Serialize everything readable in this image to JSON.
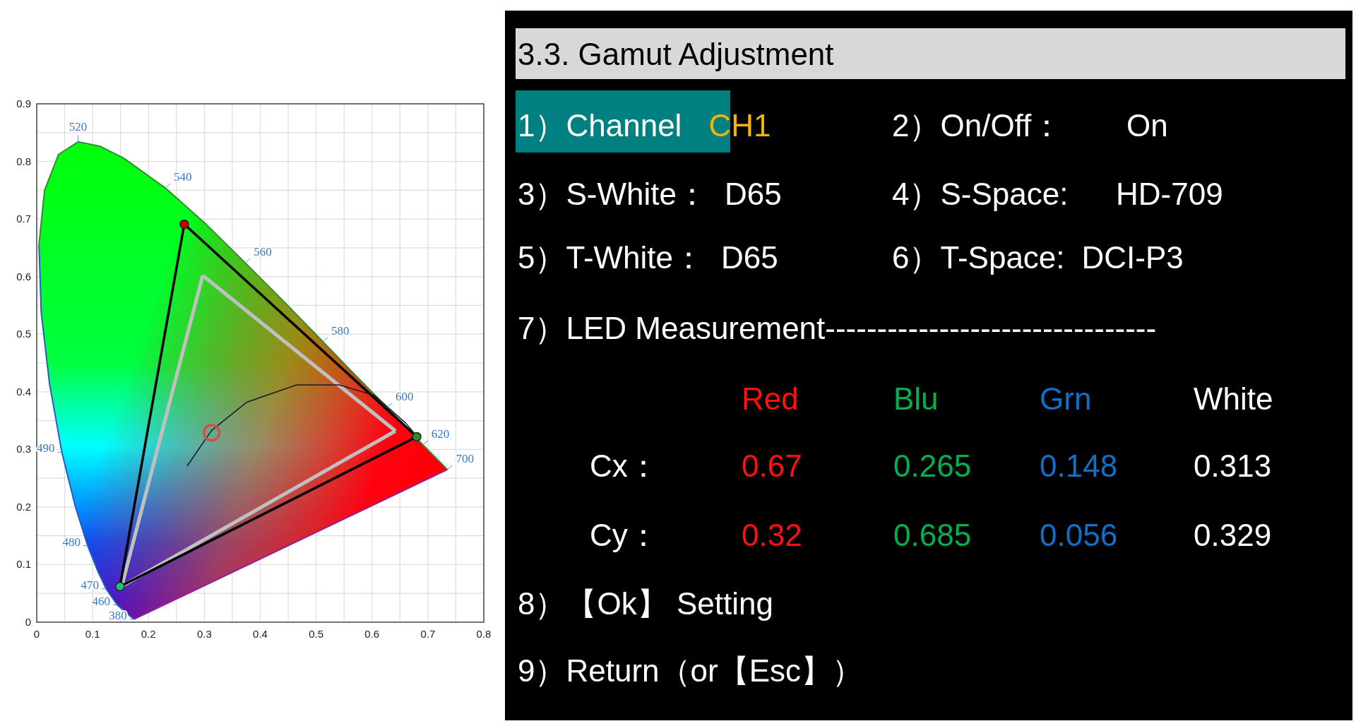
{
  "chart_data": [
    {
      "type": "line",
      "xlim": [
        0,
        0.8
      ],
      "ylim": [
        0,
        0.9
      ],
      "xticks": [
        0,
        {
          "value": 0.05,
          "label": null
        },
        0.1,
        {
          "value": 0.15,
          "label": null
        },
        0.2,
        {
          "value": 0.25,
          "label": null
        },
        0.3,
        {
          "value": 0.35,
          "label": null
        },
        0.4,
        {
          "value": 0.45,
          "label": null
        },
        0.5,
        {
          "value": 0.55,
          "label": null
        },
        0.6,
        {
          "value": 0.65,
          "label": null
        },
        0.7,
        {
          "value": 0.75,
          "label": null
        },
        0.8
      ],
      "yticks": [
        0,
        {
          "value": 0.05,
          "label": null
        },
        0.1,
        {
          "value": 0.15,
          "label": null
        },
        0.2,
        {
          "value": 0.25,
          "label": null
        },
        0.3,
        {
          "value": 0.35,
          "label": null
        },
        0.4,
        {
          "value": 0.45,
          "label": null
        },
        0.5,
        {
          "value": 0.55,
          "label": null
        },
        0.6,
        {
          "value": 0.65,
          "label": null
        },
        0.7,
        {
          "value": 0.75,
          "label": null
        },
        0.8,
        {
          "value": 0.85,
          "label": null
        },
        0.9
      ],
      "grid": true,
      "series": [
        {
          "type": "line",
          "color": "#2060c0",
          "x": [
            0.174,
            0.144,
            0.124,
            0.11,
            0.091,
            0.069,
            0.045,
            0.023,
            0.008,
            0.004
          ],
          "values": [
            0.005,
            0.03,
            0.058,
            0.087,
            0.133,
            0.201,
            0.295,
            0.413,
            0.538,
            0.655
          ]
        },
        {
          "type": "line",
          "color": "#2f8f2f",
          "x": [
            0.004,
            0.014,
            0.039,
            0.074,
            0.114,
            0.155,
            0.23,
            0.302,
            0.373,
            0.444,
            0.512,
            0.575,
            0.627,
            0.691,
            0.735
          ],
          "values": [
            0.655,
            0.75,
            0.812,
            0.834,
            0.826,
            0.806,
            0.754,
            0.692,
            0.624,
            0.555,
            0.487,
            0.424,
            0.373,
            0.308,
            0.265
          ]
        },
        {
          "type": "line",
          "color": "#9020a0",
          "x": [
            0.735,
            0.174
          ],
          "values": [
            0.265,
            0.005
          ]
        },
        {
          "type": "line",
          "color": "#c0c0c0",
          "x": [
            0.297,
            0.642
          ],
          "values": [
            0.602,
            0.332
          ]
        },
        {
          "type": "line",
          "color": "#c0c0c0",
          "x": [
            0.642,
            0.152
          ],
          "values": [
            0.332,
            0.062
          ]
        },
        {
          "type": "line",
          "color": "#c0c0c0",
          "x": [
            0.152,
            0.297
          ],
          "values": [
            0.062,
            0.602
          ]
        },
        {
          "type": "line",
          "color": "#000000",
          "x": [
            0.264,
            0.68
          ],
          "values": [
            0.691,
            0.322
          ]
        },
        {
          "type": "line",
          "color": "#000000",
          "x": [
            0.68,
            0.149
          ],
          "values": [
            0.322,
            0.062
          ]
        },
        {
          "type": "line",
          "color": "#000000",
          "x": [
            0.149,
            0.264
          ],
          "values": [
            0.062,
            0.691
          ]
        },
        {
          "type": "line",
          "color": "#1a1a2e",
          "x": [
            0.269,
            0.313,
            0.376,
            0.465,
            0.541,
            0.604,
            0.661,
            0.68
          ],
          "values": [
            0.271,
            0.333,
            0.382,
            0.412,
            0.412,
            0.394,
            0.345,
            0.323
          ]
        },
        {
          "type": "scatter",
          "marker": "circle",
          "x": [
            0.264,
            0.68,
            0.149
          ],
          "values": [
            0.691,
            0.322,
            0.062
          ],
          "colors": [
            "#c00000",
            "#2e8b2e",
            "#20c080"
          ]
        },
        {
          "type": "scatter",
          "marker": "circle",
          "color": "#d05050",
          "x": [
            0.313
          ],
          "values": [
            0.329
          ]
        }
      ],
      "annotations": [
        {
          "text": "520",
          "x": 0.074,
          "y": 0.834
        },
        {
          "text": "540",
          "x": 0.23,
          "y": 0.754
        },
        {
          "text": "560",
          "x": 0.373,
          "y": 0.624
        },
        {
          "text": "580",
          "x": 0.512,
          "y": 0.487
        },
        {
          "text": "600",
          "x": 0.627,
          "y": 0.373
        },
        {
          "text": "620",
          "x": 0.691,
          "y": 0.308
        },
        {
          "text": "700",
          "x": 0.735,
          "y": 0.265
        },
        {
          "text": "490",
          "x": 0.045,
          "y": 0.295
        },
        {
          "text": "480",
          "x": 0.091,
          "y": 0.133
        },
        {
          "text": "470",
          "x": 0.124,
          "y": 0.058
        },
        {
          "text": "460",
          "x": 0.144,
          "y": 0.03
        },
        {
          "text": "380",
          "x": 0.174,
          "y": 0.005
        }
      ]
    },
    {
      "type": "other",
      "title": "3.3.  Gamut  Adjustment",
      "categories": [
        "Red",
        "Blu",
        "Grn",
        "White"
      ],
      "colors": [
        "#ff1010",
        "#00b050",
        "#1070c8",
        "#ffffff"
      ],
      "series": [
        {
          "name": "Cx：",
          "values": [
            0.67,
            0.265,
            0.148,
            0.313
          ]
        },
        {
          "name": "Cy：",
          "values": [
            0.32,
            0.685,
            0.056,
            0.329
          ]
        }
      ],
      "data_labels": true,
      "annotations": [
        "1）Channel",
        "CH1",
        "2）On/Off：",
        "On",
        "3）S-White：",
        "D65",
        "4）S-Space:",
        "HD-709",
        "5）T-White：",
        "D65",
        "6）T-Space:",
        "DCI-P3",
        "7）LED Measurement--------------------------------",
        "8）【Ok】 Setting",
        "9）Return（or【Esc】）"
      ]
    }
  ]
}
